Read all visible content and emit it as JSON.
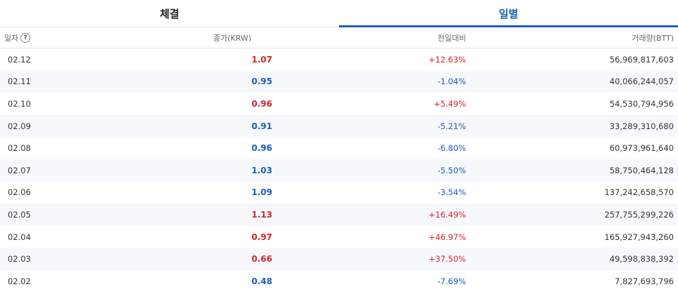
{
  "tabs": [
    {
      "label": "체결",
      "active": false
    },
    {
      "label": "일별",
      "active": true
    }
  ],
  "columns": {
    "date": "일자",
    "help": "?",
    "price": "종가(KRW)",
    "change": "전일대비",
    "volume": "거래량(BTT)"
  },
  "rows": [
    {
      "date": "02.12",
      "price": "1.07",
      "change": "+12.63%",
      "volume": "56,969,817,603",
      "dir": "up"
    },
    {
      "date": "02.11",
      "price": "0.95",
      "change": "-1.04%",
      "volume": "40,066,244,057",
      "dir": "down"
    },
    {
      "date": "02.10",
      "price": "0.96",
      "change": "+5.49%",
      "volume": "54,530,794,956",
      "dir": "up"
    },
    {
      "date": "02.09",
      "price": "0.91",
      "change": "-5.21%",
      "volume": "33,289,310,680",
      "dir": "down"
    },
    {
      "date": "02.08",
      "price": "0.96",
      "change": "-6.80%",
      "volume": "60,973,961,640",
      "dir": "down"
    },
    {
      "date": "02.07",
      "price": "1.03",
      "change": "-5.50%",
      "volume": "58,750,464,128",
      "dir": "down"
    },
    {
      "date": "02.06",
      "price": "1.09",
      "change": "-3.54%",
      "volume": "137,242,658,570",
      "dir": "down"
    },
    {
      "date": "02.05",
      "price": "1.13",
      "change": "+16.49%",
      "volume": "257,755,299,226",
      "dir": "up"
    },
    {
      "date": "02.04",
      "price": "0.97",
      "change": "+46.97%",
      "volume": "165,927,943,260",
      "dir": "up"
    },
    {
      "date": "02.03",
      "price": "0.66",
      "change": "+37.50%",
      "volume": "49,598,838,392",
      "dir": "up"
    },
    {
      "date": "02.02",
      "price": "0.48",
      "change": "-7.69%",
      "volume": "7,827,693,796",
      "dir": "down"
    }
  ],
  "colors": {
    "up": "#d4262c",
    "down": "#1d5cb9",
    "accent": "#1763b6"
  }
}
